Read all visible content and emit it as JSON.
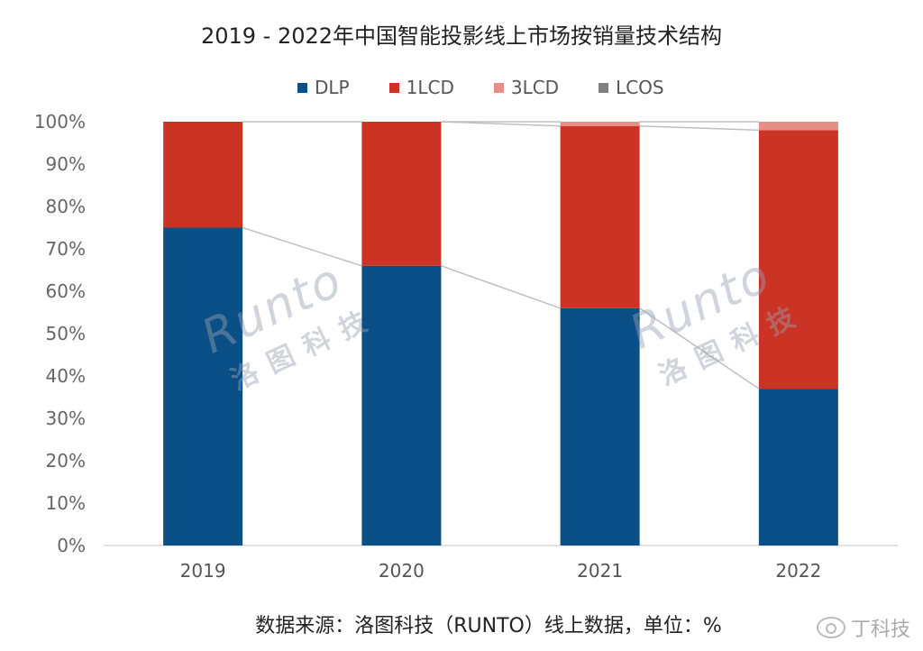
{
  "chart_data": {
    "type": "bar",
    "stacked": true,
    "title": "2019 - 2022年中国智能投影线上市场按销量技术结构",
    "categories": [
      "2019",
      "2020",
      "2021",
      "2022"
    ],
    "series": [
      {
        "name": "DLP",
        "color": "#0a4f86",
        "values": [
          75,
          66,
          56,
          37
        ]
      },
      {
        "name": "1LCD",
        "color": "#cb3425",
        "values": [
          25,
          34,
          43,
          61
        ]
      },
      {
        "name": "3LCD",
        "color": "#e58f87",
        "values": [
          0,
          0,
          1,
          2
        ]
      },
      {
        "name": "LCOS",
        "color": "#7f7f7f",
        "values": [
          0,
          0,
          0,
          0
        ]
      }
    ],
    "yticks": [
      "0%",
      "10%",
      "20%",
      "30%",
      "40%",
      "50%",
      "60%",
      "70%",
      "80%",
      "90%",
      "100%"
    ],
    "ylim": [
      0,
      100
    ],
    "legend_position": "top",
    "grid": false,
    "series_connectors": true
  },
  "legend": {
    "dlp": "DLP",
    "lcd1": "1LCD",
    "lcd3": "3LCD",
    "lcos": "LCOS"
  },
  "footer": "数据来源：洛图科技（RUNTO）线上数据，单位：%",
  "watermark": {
    "brand": "Runto",
    "chinese": "洛图科技"
  },
  "weibo": {
    "icon": "weibo-icon",
    "label": "丁科技"
  }
}
